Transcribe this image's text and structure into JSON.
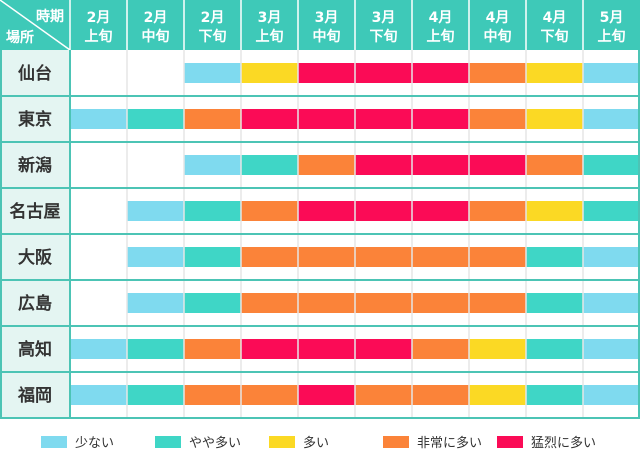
{
  "chart_data": {
    "type": "heatmap",
    "corner": {
      "top": "時期",
      "bottom": "場所"
    },
    "periods": [
      {
        "month": "2月",
        "part": "上旬"
      },
      {
        "month": "2月",
        "part": "中旬"
      },
      {
        "month": "2月",
        "part": "下旬"
      },
      {
        "month": "3月",
        "part": "上旬"
      },
      {
        "month": "3月",
        "part": "中旬"
      },
      {
        "month": "3月",
        "part": "下旬"
      },
      {
        "month": "4月",
        "part": "上旬"
      },
      {
        "month": "4月",
        "part": "中旬"
      },
      {
        "month": "4月",
        "part": "下旬"
      },
      {
        "month": "5月",
        "part": "上旬"
      }
    ],
    "places": [
      "仙台",
      "東京",
      "新潟",
      "名古屋",
      "大阪",
      "広島",
      "高知",
      "福岡"
    ],
    "levels": [
      {
        "name": "少ない",
        "color": "#7fdaef"
      },
      {
        "name": "やや多い",
        "color": "#3fd6c6"
      },
      {
        "name": "多い",
        "color": "#fbd924"
      },
      {
        "name": "非常に多い",
        "color": "#fb8339"
      },
      {
        "name": "猛烈に多い",
        "color": "#fb0b56"
      }
    ],
    "values": [
      [
        null,
        null,
        0,
        2,
        4,
        4,
        4,
        3,
        2,
        0
      ],
      [
        0,
        1,
        3,
        4,
        4,
        4,
        4,
        3,
        2,
        0
      ],
      [
        null,
        null,
        0,
        1,
        3,
        4,
        4,
        4,
        3,
        1
      ],
      [
        null,
        0,
        1,
        3,
        4,
        4,
        4,
        3,
        2,
        1
      ],
      [
        null,
        0,
        1,
        3,
        3,
        3,
        3,
        3,
        1,
        0
      ],
      [
        null,
        0,
        1,
        3,
        3,
        3,
        3,
        3,
        1,
        0
      ],
      [
        0,
        1,
        3,
        4,
        4,
        4,
        3,
        2,
        1,
        0
      ],
      [
        0,
        1,
        3,
        3,
        4,
        3,
        3,
        2,
        1,
        0
      ]
    ],
    "theme": {
      "header_bg": "#3ec9b8",
      "place_bg": "#e4f5f2",
      "grid": "#4cc4b5",
      "line": "#e6e6e6",
      "text": "#333333"
    }
  }
}
